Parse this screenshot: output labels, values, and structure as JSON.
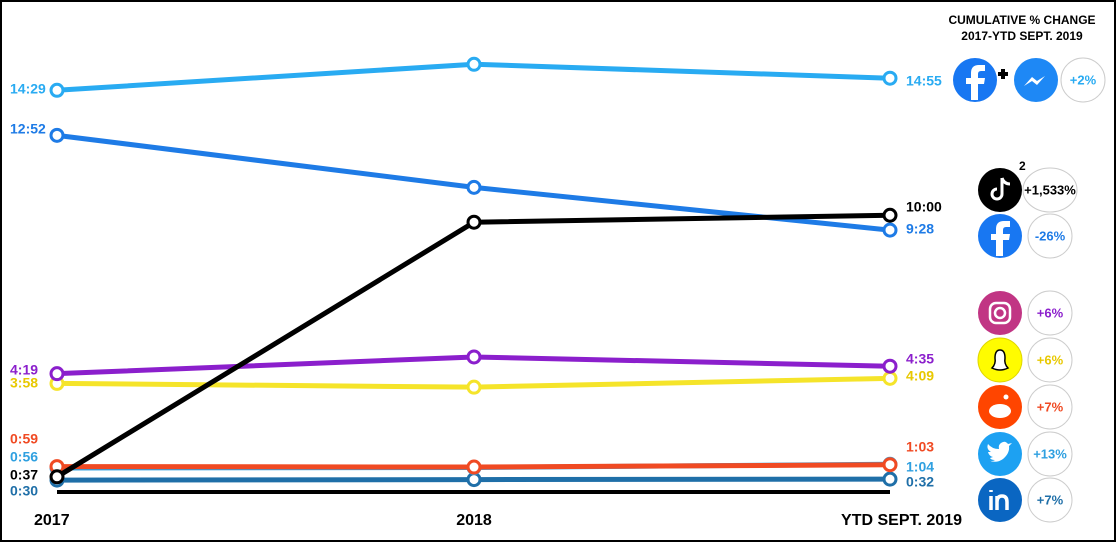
{
  "chart_data": {
    "type": "line",
    "legend_title": "CUMULATIVE % CHANGE",
    "legend_subtitle": "2017-YTD SEPT. 2019",
    "categories": [
      "2017",
      "2018",
      "YTD SEPT. 2019"
    ],
    "ylim": [
      0,
      960
    ],
    "footnote_mark": "2",
    "series": [
      {
        "color": "#29abf2",
        "label_color": "#29abf2",
        "values": [
          869,
          925,
          895
        ],
        "value_labels": [
          "14:29",
          null,
          "14:55"
        ],
        "change": "+2%"
      },
      {
        "color": "#1e7be6",
        "label_color": "#1e7be6",
        "values": [
          772,
          660,
          568
        ],
        "value_labels": [
          "12:52",
          null,
          "9:28"
        ],
        "change": "-26%"
      },
      {
        "color": "#000000",
        "label_color": "#000000",
        "values": [
          37,
          585,
          600
        ],
        "value_labels": [
          "0:37",
          null,
          "10:00"
        ],
        "change": "+1,533%"
      },
      {
        "color": "#8b1fcc",
        "label_color": "#8b1fcc",
        "values": [
          259,
          295,
          275
        ],
        "value_labels": [
          "4:19",
          null,
          "4:35"
        ],
        "change": "+6%"
      },
      {
        "color": "#f5e42a",
        "label_color": "#e8c800",
        "values": [
          238,
          230,
          249
        ],
        "value_labels": [
          "3:58",
          null,
          "4:09"
        ],
        "change": "+6%"
      },
      {
        "color": "#f04a23",
        "label_color": "#f04a23",
        "values": [
          59,
          58,
          63
        ],
        "value_labels": [
          "0:59",
          null,
          "1:03"
        ],
        "change": "+7%"
      },
      {
        "color": "#2fa0e0",
        "label_color": "#2fa0e0",
        "values": [
          56,
          57,
          64
        ],
        "value_labels": [
          "0:56",
          null,
          "1:04"
        ],
        "change": "+13%"
      },
      {
        "color": "#1f6fa8",
        "label_color": "#1f6fa8",
        "values": [
          30,
          31,
          32
        ],
        "value_labels": [
          "0:30",
          null,
          "0:32"
        ],
        "change": "+7%"
      }
    ]
  }
}
